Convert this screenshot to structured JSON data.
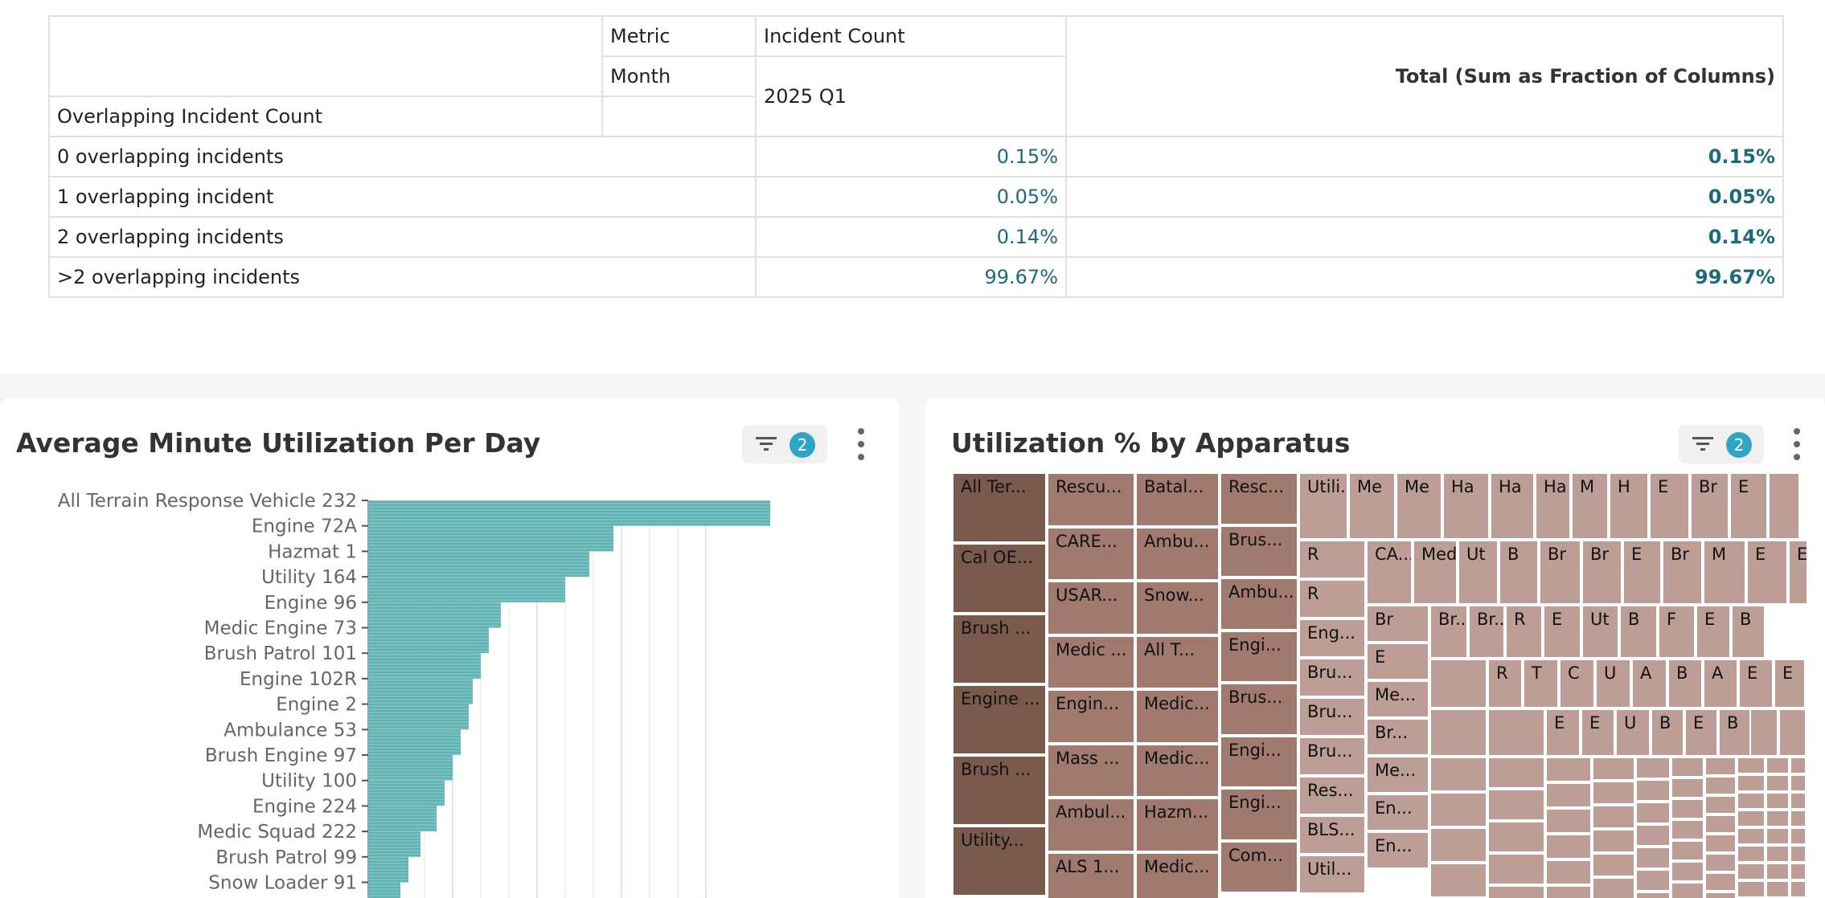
{
  "pivot": {
    "metric_label": "Metric",
    "metric_value": "Incident Count",
    "month_label": "Month",
    "month_value": "2025 Q1",
    "row_dimension": "Overlapping Incident Count",
    "total_header": "Total (Sum as Fraction of Columns)",
    "rows": [
      {
        "label": "0 overlapping incidents",
        "value": "0.15%",
        "total": "0.15%"
      },
      {
        "label": "1 overlapping incident",
        "value": "0.05%",
        "total": "0.05%"
      },
      {
        "label": "2 overlapping incidents",
        "value": "0.14%",
        "total": "0.14%"
      },
      {
        "label": ">2 overlapping incidents",
        "value": "99.67%",
        "total": "99.67%"
      }
    ]
  },
  "bar_card": {
    "title": "Average Minute Utilization Per Day",
    "filter_icon": "filter-icon",
    "filter_count": "2",
    "menu_icon": "more-vertical-icon",
    "bar_color": "#5fb3b3"
  },
  "treemap_card": {
    "title": "Utilization % by Apparatus",
    "filter_icon": "filter-icon",
    "filter_count": "2",
    "menu_icon": "more-vertical-icon",
    "color_dark": "#7b5a4e",
    "color_mid": "#a07a6e",
    "color_light": "#bc9e96"
  },
  "chart_data": [
    {
      "type": "bar",
      "orientation": "horizontal",
      "title": "Average Minute Utilization Per Day",
      "categories": [
        "All Terrain Response Vehicle 232",
        "Engine 72A",
        "Hazmat 1",
        "Utility 164",
        "Engine 96",
        "Medic Engine 73",
        "Brush Patrol 101",
        "Engine 102R",
        "Engine 2",
        "Ambulance 53",
        "Brush Engine 97",
        "Utility 100",
        "Engine 224",
        "Medic Squad 222",
        "Brush Patrol 99",
        "Snow Loader 91"
      ],
      "values": [
        100,
        61,
        55,
        49,
        33,
        30,
        28,
        26,
        25,
        23,
        21,
        19,
        17,
        13,
        10,
        8
      ],
      "legend": "none",
      "grid": true
    },
    {
      "type": "treemap",
      "title": "Utilization % by Apparatus",
      "labels": [
        "All Ter...",
        "Cal OE...",
        "Brush ...",
        "Engine ...",
        "Brush ...",
        "Utility...",
        "Rescu...",
        "CARE...",
        "USAR...",
        "Medic ...",
        "Engin...",
        "Mass ...",
        "Ambul...",
        "ALS 1...",
        "Batal...",
        "Ambu...",
        "Snow...",
        "All T...",
        "Medic...",
        "Medic...",
        "Hazm...",
        "Medic...",
        "Resc...",
        "Brus...",
        "Ambu...",
        "Engi...",
        "Brus...",
        "Engi...",
        "Engi...",
        "Com...",
        "Utili...",
        "Me",
        "Me",
        "Ha",
        "Ha",
        "Ha",
        "M",
        "H",
        "E",
        "Br",
        "E",
        "R",
        "R",
        "Eng...",
        "Bru...",
        "Bru...",
        "Bru...",
        "Res...",
        "BLS...",
        "Util...",
        "CA...",
        "Med...",
        "Ut",
        "B",
        "Br",
        "Br",
        "E",
        "Br",
        "M",
        "E",
        "E",
        "Br",
        "E",
        "Me...",
        "Br...",
        "Me...",
        "En...",
        "En...",
        "Br...",
        "Br...",
        "R",
        "E",
        "Ut",
        "B",
        "F",
        "E",
        "B",
        "R",
        "T",
        "C",
        "U",
        "A",
        "B",
        "A",
        "E",
        "E",
        "E",
        "E",
        "U",
        "B",
        "E",
        "B",
        "B",
        "E",
        "B"
      ]
    }
  ]
}
